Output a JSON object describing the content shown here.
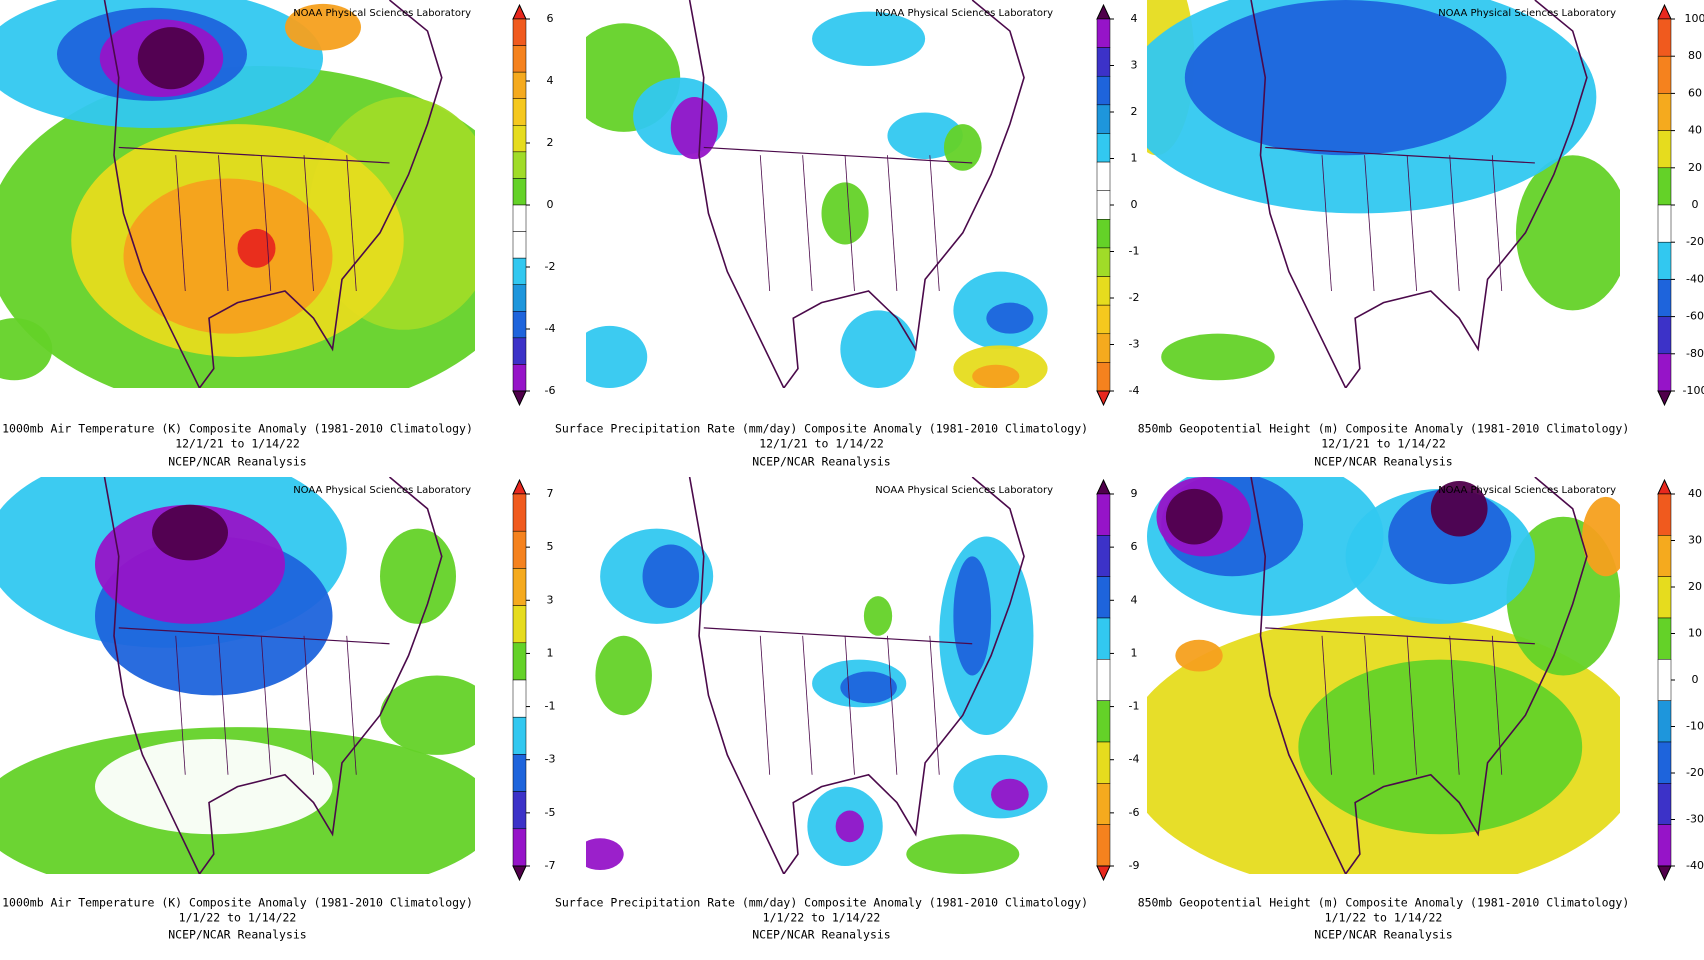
{
  "panels": [
    {
      "credit": "NOAA Physical Sciences Laboratory",
      "caption": [
        "1000mb Air Temperature (K) Composite Anomaly (1981-2010 Climatology)",
        "12/1/21   to 1/14/22",
        "NCEP/NCAR Reanalysis"
      ],
      "colorbar": {
        "ticks": [
          6,
          4,
          2,
          0,
          -2,
          -4,
          -6
        ],
        "colors": [
          "#e8281e",
          "#f05a1e",
          "#f5821e",
          "#f5aa1e",
          "#f5c81e",
          "#e6dc1e",
          "#a0dc28",
          "#64d228",
          "#ffffff",
          "#ffffff",
          "#32c8f0",
          "#1e96dc",
          "#1e64dc",
          "#3c32c8",
          "#9614c8",
          "#50004b"
        ]
      }
    },
    {
      "credit": "NOAA Physical Sciences Laboratory",
      "caption": [
        "Surface Precipitation Rate (mm/day) Composite Anomaly (1981-2010 Climatology)",
        "12/1/21   to 1/14/22",
        "NCEP/NCAR Reanalysis"
      ],
      "colorbar": {
        "ticks": [
          4,
          3,
          2,
          1,
          0,
          -1,
          -2,
          -3,
          -4
        ],
        "colors": [
          "#50004b",
          "#9614c8",
          "#3c32c8",
          "#1e64dc",
          "#1e96dc",
          "#32c8f0",
          "#ffffff",
          "#ffffff",
          "#64d228",
          "#a0dc28",
          "#e6dc1e",
          "#f5c81e",
          "#f5aa1e",
          "#f5821e",
          "#e8281e"
        ]
      }
    },
    {
      "credit": "NOAA Physical Sciences Laboratory",
      "caption": [
        "850mb Geopotential Height (m) Composite Anomaly (1981-2010 Climatology)",
        "12/1/21   to 1/14/22",
        "NCEP/NCAR Reanalysis"
      ],
      "colorbar": {
        "ticks": [
          100,
          80,
          60,
          40,
          20,
          0,
          -20,
          -40,
          -60,
          -80,
          -100
        ],
        "colors": [
          "#e8281e",
          "#f05a1e",
          "#f5821e",
          "#f5aa1e",
          "#e6dc1e",
          "#64d228",
          "#ffffff",
          "#32c8f0",
          "#1e64dc",
          "#3c32c8",
          "#9614c8",
          "#50004b"
        ]
      }
    },
    {
      "credit": "NOAA Physical Sciences Laboratory",
      "caption": [
        "1000mb Air Temperature (K) Composite Anomaly (1981-2010 Climatology)",
        "1/1/22   to 1/14/22",
        "NCEP/NCAR Reanalysis"
      ],
      "colorbar": {
        "ticks": [
          7,
          5,
          3,
          1,
          -1,
          -3,
          -5,
          -7
        ],
        "colors": [
          "#e8281e",
          "#f05a1e",
          "#f5821e",
          "#f5aa1e",
          "#e6dc1e",
          "#64d228",
          "#ffffff",
          "#32c8f0",
          "#1e64dc",
          "#3c32c8",
          "#9614c8",
          "#50004b"
        ]
      }
    },
    {
      "credit": "NOAA Physical Sciences Laboratory",
      "caption": [
        "Surface Precipitation Rate (mm/day) Composite Anomaly (1981-2010 Climatology)",
        "1/1/22   to 1/14/22",
        "NCEP/NCAR Reanalysis"
      ],
      "colorbar": {
        "ticks": [
          9,
          6,
          4,
          1,
          -1,
          -4,
          -6,
          -9
        ],
        "colors": [
          "#50004b",
          "#9614c8",
          "#3c32c8",
          "#1e64dc",
          "#32c8f0",
          "#ffffff",
          "#64d228",
          "#e6dc1e",
          "#f5aa1e",
          "#f5821e",
          "#e8281e"
        ]
      }
    },
    {
      "credit": "NOAA Physical Sciences Laboratory",
      "caption": [
        "850mb Geopotential Height (m) Composite Anomaly (1981-2010 Climatology)",
        "1/1/22   to 1/14/22",
        "NCEP/NCAR Reanalysis"
      ],
      "colorbar": {
        "ticks": [
          40,
          30,
          20,
          10,
          0,
          -10,
          -20,
          -30,
          -40
        ],
        "colors": [
          "#e8281e",
          "#f05a1e",
          "#f5aa1e",
          "#e6dc1e",
          "#64d228",
          "#ffffff",
          "#1e96dc",
          "#1e64dc",
          "#3c32c8",
          "#9614c8",
          "#50004b"
        ]
      }
    }
  ]
}
